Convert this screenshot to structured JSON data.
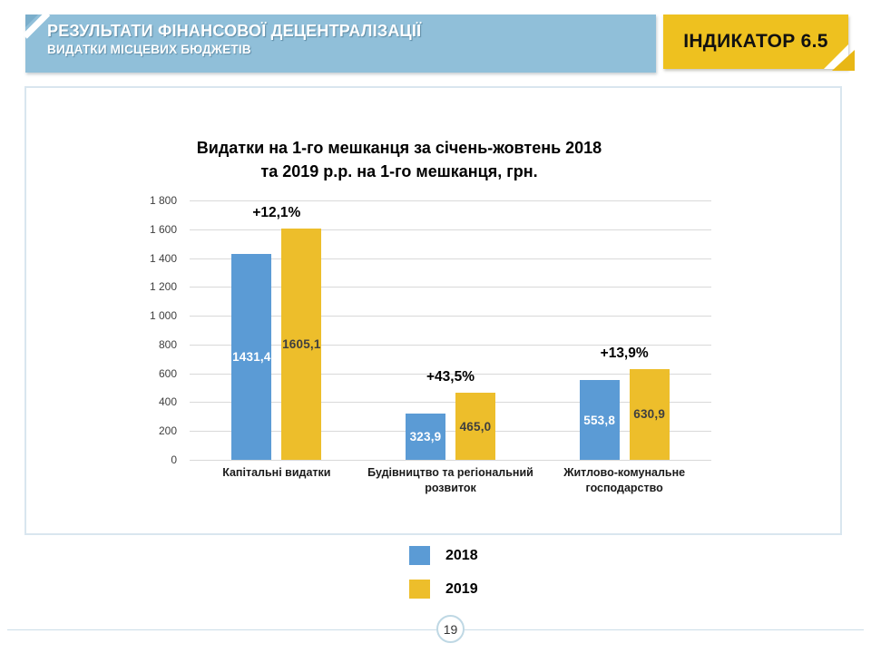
{
  "header": {
    "title": "РЕЗУЛЬТАТИ ФІНАНСОВОЇ ДЕЦЕНТРАЛІЗАЦІЇ",
    "subtitle": "ВИДАТКИ МІСЦЕВИХ БЮДЖЕТІВ",
    "indicator": "ІНДИКАТОР 6.5"
  },
  "chart_data": {
    "type": "bar",
    "title_line1": "Видатки на 1-го мешканця за січень-жовтень 2018",
    "title_line2": "та 2019 р.р. на 1-го мешканця, грн.",
    "categories": [
      "Капітальні видатки",
      "Будівництво та регіональний розвиток",
      "Житлово-комунальне господарство"
    ],
    "series": [
      {
        "name": "2018",
        "color": "#5B9BD5",
        "label_color": "#FFFFFF",
        "values": [
          1431.4,
          323.9,
          553.8
        ],
        "value_labels": [
          "1431,4",
          "323,9",
          "553,8"
        ]
      },
      {
        "name": "2019",
        "color": "#EDBE2B",
        "label_color": "#3F3F3F",
        "values": [
          1605.1,
          465.0,
          630.9
        ],
        "value_labels": [
          "1605,1",
          "465,0",
          "630,9"
        ]
      }
    ],
    "deltas": [
      "+12,1%",
      "+43,5%",
      "+13,9%"
    ],
    "ylim": [
      0,
      1800
    ],
    "ytick_step": 200,
    "ytick_labels": [
      "0",
      "200",
      "400",
      "600",
      "800",
      "1 000",
      "1 200",
      "1 400",
      "1 600",
      "1 800"
    ],
    "xlabel": "",
    "ylabel": "",
    "grid": true,
    "legend_position": "bottom"
  },
  "legend": {
    "items": [
      {
        "label": "2018",
        "color": "#5B9BD5"
      },
      {
        "label": "2019",
        "color": "#EDBE2B"
      }
    ]
  },
  "footer": {
    "page_number": "19"
  },
  "colors": {
    "banner_bg": "#90BFD9",
    "banner_corner": "#7AAECB",
    "indicator_bg": "#EEC11F",
    "indicator_fold": "#E8B715",
    "bar_blue": "#5B9BD5",
    "bar_yellow": "#EDBE2B",
    "gridline": "#D9D9D9",
    "axis_text": "#404040",
    "card_border": "#D9E6EF",
    "footer_line": "#CBDEE8"
  }
}
